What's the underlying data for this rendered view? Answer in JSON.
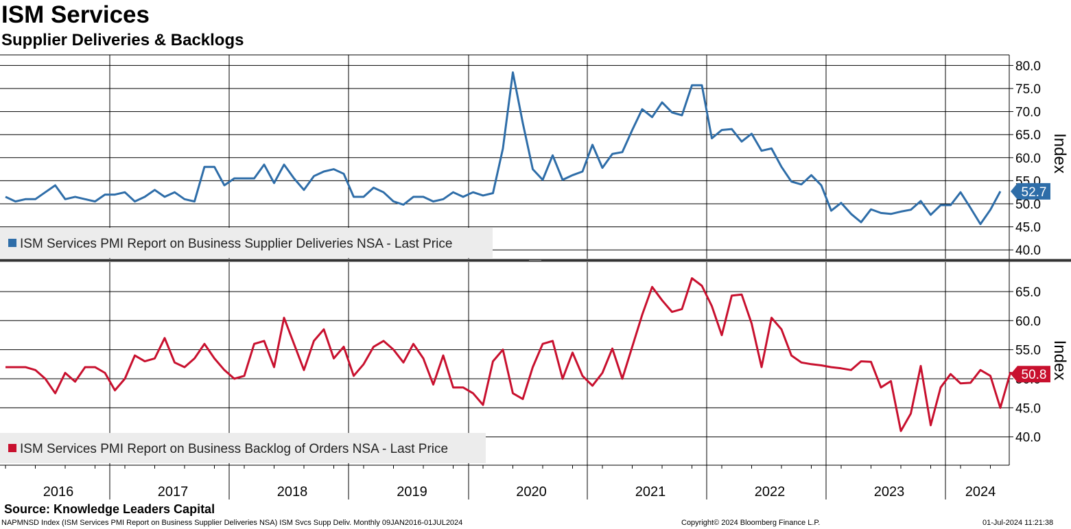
{
  "header": {
    "title": "ISM Services",
    "subtitle": "Supplier Deliveries & Backlogs"
  },
  "source": "Source: Knowledge Leaders Capital",
  "footer": {
    "left": "NAPMNSD Index (ISM Services PMI Report on Business Supplier Deliveries NSA) ISM Svcs Supp Deliv.  Monthly 09JAN2016-01JUL2024",
    "middle": "Copyright© 2024 Bloomberg Finance L.P.",
    "right": "01-Jul-2024 11:21:38"
  },
  "chart_data": [
    {
      "type": "line",
      "x_range": [
        "2016-01",
        "2024-06"
      ],
      "ylabel": "Index",
      "ylim": [
        38.5,
        82
      ],
      "yticks": [
        40,
        45,
        50,
        55,
        60,
        65,
        70,
        75,
        80
      ],
      "ytick_labels": [
        "40.0",
        "45.0",
        "50.0",
        "55.0",
        "60.0",
        "65.0",
        "70.0",
        "75.0",
        "80.0"
      ],
      "xtick_labels": [
        "2016",
        "2017",
        "2018",
        "2019",
        "2020",
        "2021",
        "2022",
        "2023",
        "2024"
      ],
      "grid": true,
      "legend_position": "bottom-left",
      "last_value_label": "52.7",
      "color": "#2E6DA8",
      "series": [
        {
          "name": "ISM Services PMI Report on Business Supplier Deliveries NSA - Last Price",
          "values": [
            51.5,
            50.5,
            51,
            51,
            52.5,
            54,
            51,
            51.5,
            51,
            50.5,
            52,
            52,
            52.5,
            50.5,
            51.5,
            53,
            51.5,
            52.5,
            51,
            50.5,
            58,
            58,
            54,
            55.5,
            55.5,
            55.5,
            58.5,
            54.5,
            58.5,
            55.5,
            53,
            56,
            57,
            57.5,
            56.5,
            51.5,
            51.5,
            53.5,
            52.5,
            50.5,
            49.8,
            51.5,
            51.5,
            50.5,
            51,
            52.5,
            51.5,
            52.5,
            51.8,
            52.3,
            62,
            78.5,
            67.5,
            57.5,
            55.2,
            60.5,
            55.2,
            56.2,
            57,
            62.8,
            57.8,
            60.8,
            61.2,
            66,
            70.5,
            68.8,
            72,
            69.8,
            69.2,
            75.7,
            75.7,
            64.2,
            66,
            66.2,
            63.5,
            65.2,
            61.5,
            62,
            58,
            54.8,
            54.2,
            56.2,
            54,
            48.5,
            50.2,
            47.8,
            46,
            48.8,
            48,
            47.8,
            48.3,
            48.7,
            50.6,
            47.6,
            49.7,
            49.7,
            52.5,
            49.1,
            45.6,
            48.7,
            52.7
          ]
        }
      ]
    },
    {
      "type": "line",
      "x_range": [
        "2016-01",
        "2024-06"
      ],
      "ylabel": "Index",
      "ylim": [
        35,
        69
      ],
      "yticks": [
        40,
        45,
        50,
        55,
        60,
        65
      ],
      "ytick_labels": [
        "40.0",
        "45.0",
        "50.0",
        "55.0",
        "60.0",
        "65.0"
      ],
      "xtick_labels": [
        "2016",
        "2017",
        "2018",
        "2019",
        "2020",
        "2021",
        "2022",
        "2023",
        "2024"
      ],
      "grid": true,
      "legend_position": "bottom-left",
      "last_value_label": "50.8",
      "color": "#C8102E",
      "series": [
        {
          "name": "ISM Services PMI Report on Business Backlog of Orders NSA - Last Price",
          "values": [
            52,
            52,
            52,
            51.5,
            50,
            47.5,
            51,
            49.5,
            52,
            52,
            51,
            48,
            50,
            54,
            53,
            53.5,
            57,
            52.8,
            52,
            53.5,
            56,
            53.5,
            51.5,
            50,
            50.5,
            56,
            56.5,
            52,
            60.5,
            56,
            51.5,
            56.5,
            58.5,
            53.5,
            55.5,
            50.5,
            52.5,
            55.5,
            56.5,
            55,
            52.8,
            56,
            53.5,
            49,
            54,
            48.5,
            48.5,
            47.5,
            45.5,
            53,
            55,
            47.5,
            46.5,
            52,
            56,
            56.5,
            50,
            54.5,
            50.5,
            48.8,
            51,
            55.2,
            50,
            55.5,
            61,
            65.8,
            63.5,
            61.5,
            62,
            67.3,
            66,
            62.5,
            57.5,
            64.3,
            64.5,
            59.5,
            52,
            60.5,
            58.5,
            54,
            52.8,
            52.5,
            52.3,
            52,
            51.8,
            51.5,
            53,
            52.9,
            48.5,
            49.6,
            41,
            44,
            52.2,
            42,
            48.5,
            50.8,
            49.2,
            49.3,
            51.5,
            50.5,
            45,
            51,
            50.8
          ]
        }
      ]
    }
  ]
}
